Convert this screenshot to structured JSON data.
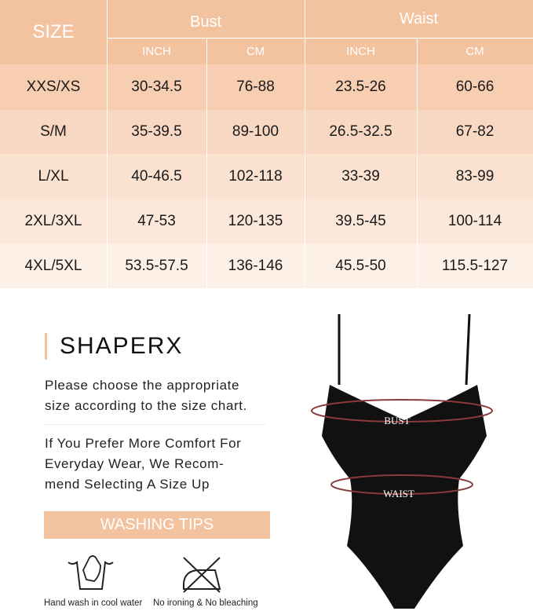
{
  "size_chart": {
    "header": {
      "size": "SIZE",
      "bust": "Bust",
      "waist": "Waist",
      "units": [
        "INCH",
        "CM",
        "INCH",
        "CM"
      ]
    },
    "rows": [
      {
        "size": "XXS/XS",
        "bust_in": "30-34.5",
        "bust_cm": "76-88",
        "waist_in": "23.5-26",
        "waist_cm": "60-66"
      },
      {
        "size": "S/M",
        "bust_in": "35-39.5",
        "bust_cm": "89-100",
        "waist_in": "26.5-32.5",
        "waist_cm": "67-82"
      },
      {
        "size": "L/XL",
        "bust_in": "40-46.5",
        "bust_cm": "102-118",
        "waist_in": "33-39",
        "waist_cm": "83-99"
      },
      {
        "size": "2XL/3XL",
        "bust_in": "47-53",
        "bust_cm": "120-135",
        "waist_in": "39.5-45",
        "waist_cm": "100-114"
      },
      {
        "size": "4XL/5XL",
        "bust_in": "53.5-57.5",
        "bust_cm": "136-146",
        "waist_in": "45.5-50",
        "waist_cm": "115.5-127"
      }
    ],
    "row_colors": [
      "#f7ceb1",
      "#f9d8c3",
      "#fbe1d0",
      "#fce8db",
      "#fdf0e7"
    ],
    "header_color": "#f3c29f"
  },
  "brand": "SHAPERX",
  "note1": [
    "Please choose the appropriate",
    "size according to the size chart."
  ],
  "note2": [
    "If You Prefer More Comfort For",
    "Everyday Wear, We Recom-",
    "mend Selecting A Size Up"
  ],
  "washing": {
    "title": "WASHING TIPS",
    "tips": [
      {
        "icon": "hand-wash-icon",
        "label": "Hand wash in cool water"
      },
      {
        "icon": "no-ironing-icon",
        "label": "No ironing & No bleaching"
      }
    ]
  },
  "figure": {
    "bust_label": "BUST",
    "waist_label": "WAIST",
    "garment_color": "#111111",
    "measure_color": "#8a3a3a"
  }
}
